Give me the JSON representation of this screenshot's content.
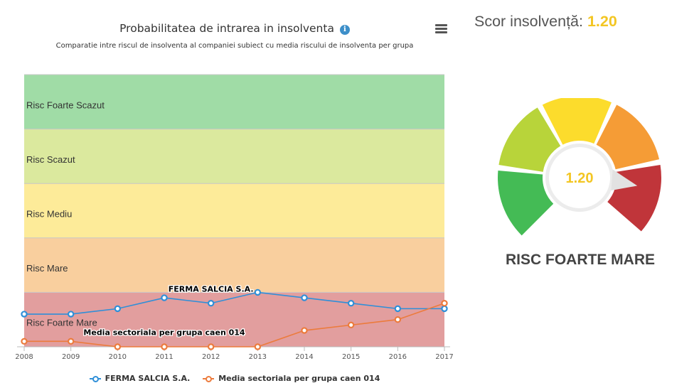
{
  "chart_panel": {
    "title": "Probabilitatea de intrarea in insolventa",
    "info_glyph": "i",
    "subtitle": "Comparatie intre riscul de insolventa al companiei subiect cu media riscului de insolventa per grupa"
  },
  "chart_data": {
    "type": "line",
    "title": "Probabilitatea de intrarea in insolventa",
    "subtitle": "Comparatie intre riscul de insolventa al companiei subiect cu media riscului de insolventa per grupa",
    "x": [
      "2008",
      "2009",
      "2010",
      "2011",
      "2012",
      "2013",
      "2014",
      "2015",
      "2016",
      "2017"
    ],
    "ylim": [
      0,
      5
    ],
    "bands": [
      {
        "label": "Risc Foarte Mare",
        "from": 0,
        "to": 1,
        "color": "#e29e9e"
      },
      {
        "label": "Risc Mare",
        "from": 1,
        "to": 2,
        "color": "#f9cf9e"
      },
      {
        "label": "Risc Mediu",
        "from": 2,
        "to": 3,
        "color": "#fdeb99"
      },
      {
        "label": "Risc Scazut",
        "from": 3,
        "to": 4,
        "color": "#dbe99e"
      },
      {
        "label": "Risc Foarte Scazut",
        "from": 4,
        "to": 5,
        "color": "#a0dca6"
      }
    ],
    "series": [
      {
        "name": "FERMA SALCIA S.A.",
        "color": "#2f8fd8",
        "values": [
          0.6,
          0.6,
          0.7,
          0.9,
          0.8,
          1.0,
          0.9,
          0.8,
          0.7,
          0.7
        ]
      },
      {
        "name": "Media sectoriala per grupa caen 014",
        "color": "#ec7b3c",
        "values": [
          0.1,
          0.1,
          0.0,
          0.0,
          0.0,
          0.0,
          0.3,
          0.4,
          0.5,
          0.8
        ]
      }
    ],
    "annotations": [
      {
        "text": "FERMA SALCIA S.A.",
        "x": "2012",
        "y": 1.0
      },
      {
        "text": "Media sectoriala per grupa caen 014",
        "x": "2011",
        "y": 0.2
      }
    ],
    "legend_position": "bottom",
    "grid": true
  },
  "score": {
    "label": "Scor insolvență:",
    "value": "1.20",
    "value_color": "#f3c623",
    "level": "RISC FOARTE MARE"
  },
  "gauge": {
    "segment_colors": [
      "#44bb55",
      "#b8d43a",
      "#fcdc2c",
      "#f59c36",
      "#c0353a"
    ],
    "active_segment": 5
  }
}
